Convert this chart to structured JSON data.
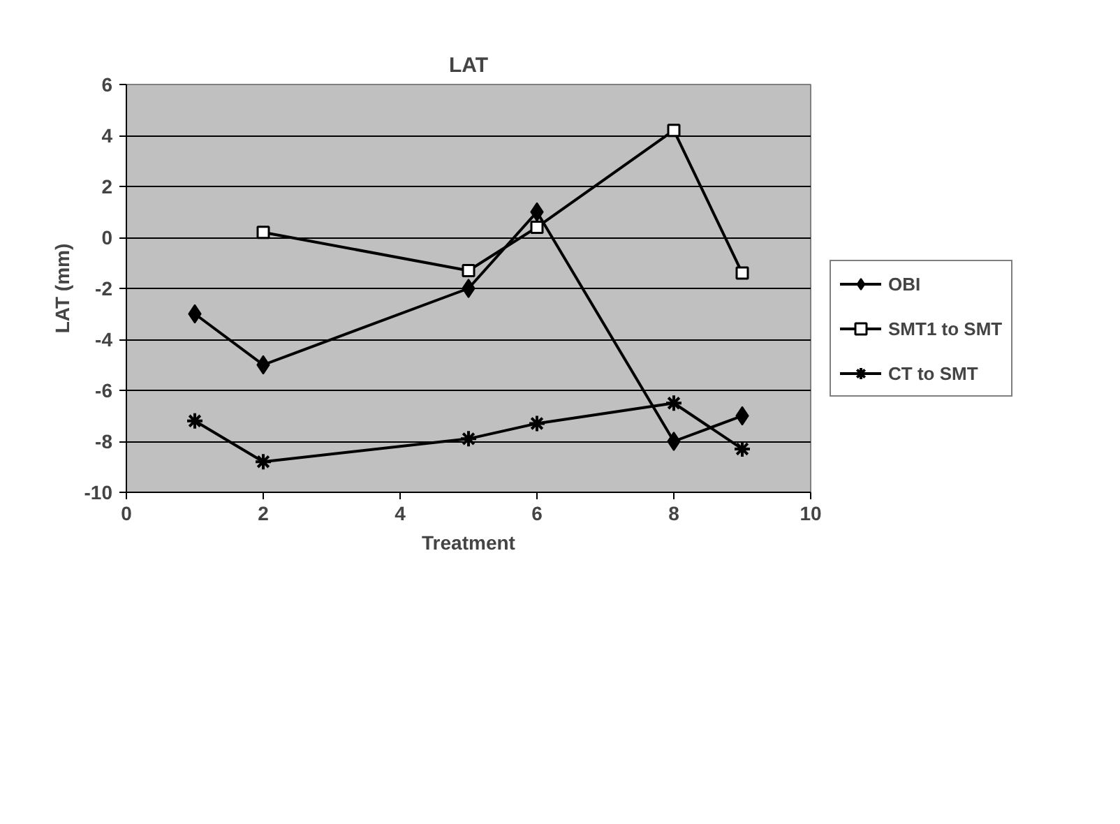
{
  "chart_data": {
    "type": "line",
    "title": "LAT",
    "xlabel": "Treatment",
    "ylabel": "LAT (mm)",
    "xlim": [
      0,
      10
    ],
    "xticks": [
      0,
      2,
      4,
      6,
      8,
      10
    ],
    "ylim": [
      -10,
      6
    ],
    "yticks": [
      -10,
      -8,
      -6,
      -4,
      -2,
      0,
      2,
      4,
      6
    ],
    "grid": "y",
    "legend": "right",
    "line_style": "solid",
    "series": [
      {
        "name": "OBI",
        "color": "#000000",
        "marker": "diamond",
        "x": [
          1,
          2,
          5,
          6,
          8,
          9
        ],
        "values": [
          -3,
          -5,
          -2,
          1,
          -8,
          -7
        ]
      },
      {
        "name": "SMT1 to SMT",
        "color": "#000000",
        "marker": "square",
        "x": [
          2,
          5,
          6,
          8,
          9
        ],
        "values": [
          0.2,
          -1.3,
          0.4,
          4.2,
          -1.4
        ]
      },
      {
        "name": "CT to SMT",
        "color": "#000000",
        "marker": "cross",
        "x": [
          1,
          2,
          5,
          6,
          8,
          9
        ],
        "values": [
          -7.2,
          -8.8,
          -7.9,
          -7.3,
          -6.5,
          -8.3
        ]
      }
    ]
  }
}
